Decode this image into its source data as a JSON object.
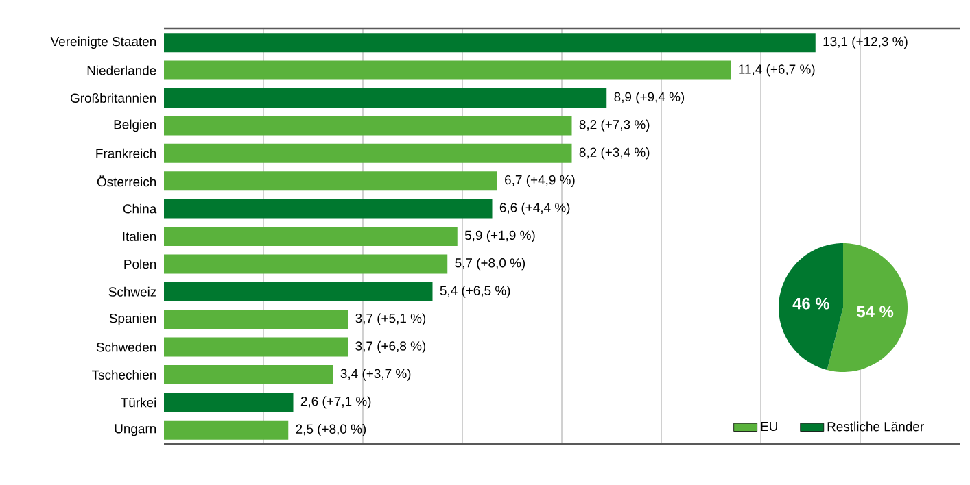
{
  "chart_data": [
    {
      "type": "bar",
      "orientation": "horizontal",
      "tick_labels": "y",
      "grid": "x",
      "categories": [
        "Vereinigte Staaten",
        "Niederlande",
        "Großbritannien",
        "Belgien",
        "Frankreich",
        "Österreich",
        "China",
        "Italien",
        "Polen",
        "Schweiz",
        "Spanien",
        "Schweden",
        "Tschechien",
        "Türkei",
        "Ungarn"
      ],
      "values": [
        13.1,
        11.4,
        8.9,
        8.2,
        8.2,
        6.7,
        6.6,
        5.9,
        5.7,
        5.4,
        3.7,
        3.7,
        3.4,
        2.6,
        2.5
      ],
      "colors": [
        "#00782f",
        "#5ab23c",
        "#00782f",
        "#5ab23c",
        "#5ab23c",
        "#5ab23c",
        "#00782f",
        "#5ab23c",
        "#5ab23c",
        "#00782f",
        "#5ab23c",
        "#5ab23c",
        "#5ab23c",
        "#00782f",
        "#5ab23c"
      ],
      "value_labels": [
        "13,1 (+12,3 %)",
        "11,4 (+6,7 %)",
        "8,9 (+9,4 %)",
        "8,2 (+7,3 %)",
        "8,2 (+3,4 %)",
        "6,7 (+4,9 %)",
        "6,6 (+4,4 %)",
        "5,9 (+1,9 %)",
        "5,7 (+8,0 %)",
        "5,4 (+6,5 %)",
        "3,7 (+5,1 %)",
        "3,7 (+6,8 %)",
        "3,4 (+3,7 %)",
        "2,6 (+7,1 %)",
        "2,5 (+8,0 %)"
      ],
      "xlim": [
        0,
        16
      ],
      "xticks": [
        {
          "value": 2,
          "label": null
        },
        {
          "value": 4,
          "label": null
        },
        {
          "value": 6,
          "label": null
        },
        {
          "value": 8,
          "label": null
        },
        {
          "value": 10,
          "label": null
        },
        {
          "value": 12,
          "label": null
        },
        {
          "value": 14,
          "label": null
        }
      ]
    },
    {
      "type": "pie",
      "legend": "bottom",
      "categories": [
        "EU",
        "Restliche Länder"
      ],
      "values": [
        54,
        46
      ],
      "colors": [
        "#5ab23c",
        "#00782f"
      ],
      "value_labels": [
        "54 %",
        "46 %"
      ]
    }
  ]
}
